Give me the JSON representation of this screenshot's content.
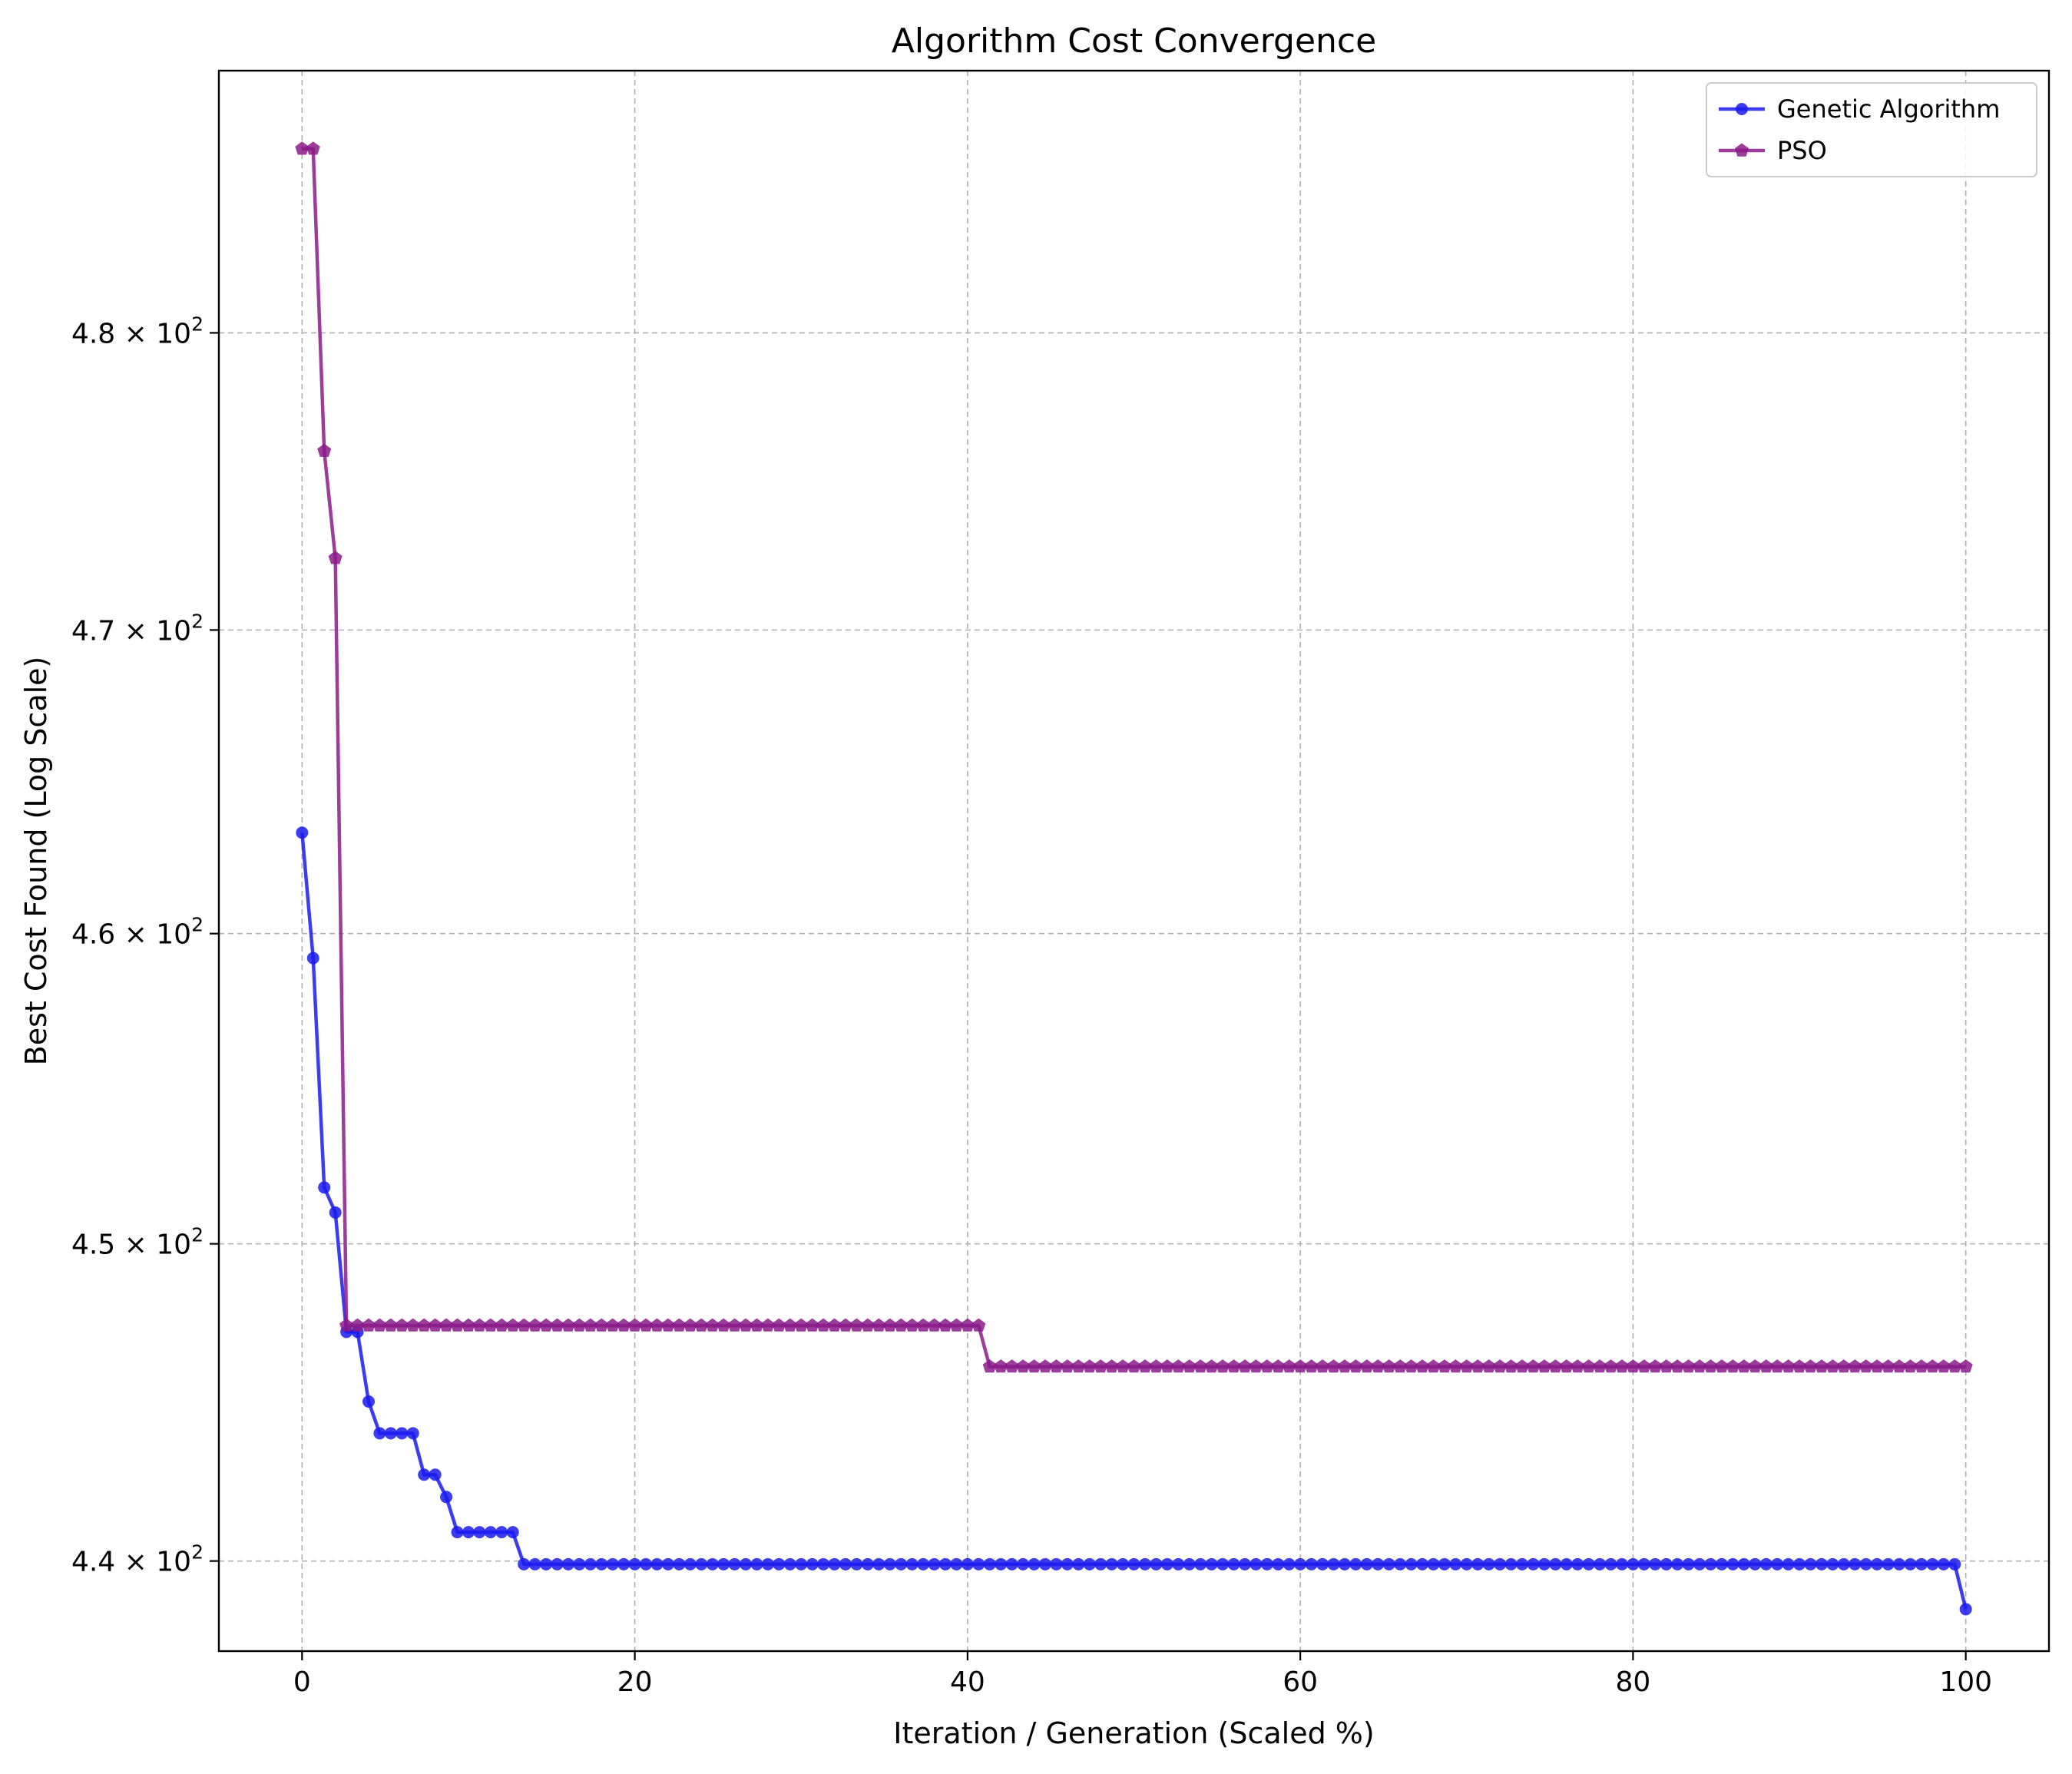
{
  "chart_data": {
    "type": "line",
    "title": "Algorithm Cost Convergence",
    "xlabel": "Iteration / Generation (Scaled %)",
    "ylabel": "Best Cost Found (Log Scale)",
    "xlim": [
      -5,
      105
    ],
    "ylim": [
      437.2,
      489.0
    ],
    "y_scale": "log",
    "grid": true,
    "legend_position": "top-right",
    "x_ticks": [
      {
        "value": 0,
        "label": "0"
      },
      {
        "value": 20,
        "label": "20"
      },
      {
        "value": 40,
        "label": "40"
      },
      {
        "value": 60,
        "label": "60"
      },
      {
        "value": 80,
        "label": "80"
      },
      {
        "value": 100,
        "label": "100"
      }
    ],
    "y_ticks": [
      {
        "value": 440,
        "mantissa": "4.4",
        "label": "4.4 × 10²"
      },
      {
        "value": 450,
        "mantissa": "4.5",
        "label": "4.5 × 10²"
      },
      {
        "value": 460,
        "mantissa": "4.6",
        "label": "4.6 × 10²"
      },
      {
        "value": 470,
        "mantissa": "4.7",
        "label": "4.7 × 10²"
      },
      {
        "value": 480,
        "mantissa": "4.8",
        "label": "4.8 × 10²"
      }
    ],
    "tick_exponent_base": "10",
    "tick_exponent_power": "2",
    "tick_times_symbol": "×",
    "series": [
      {
        "name": "Genetic Algorithm",
        "color": "#1a1aee",
        "marker": "circle",
        "x_range": [
          0,
          100
        ],
        "n_points": 151,
        "steps": [
          [
            0,
            463.3
          ],
          [
            1,
            459.2
          ],
          [
            2,
            451.8
          ],
          [
            3,
            451.0
          ],
          [
            4,
            447.2
          ],
          [
            5,
            447.2
          ],
          [
            6,
            445.0
          ],
          [
            7,
            444.0
          ],
          [
            11,
            442.7
          ],
          [
            13,
            442.0
          ],
          [
            14,
            440.9
          ],
          [
            20,
            439.9
          ],
          [
            150,
            438.5
          ]
        ]
      },
      {
        "name": "PSO",
        "color": "#8b1a89",
        "marker": "pentagon",
        "x_range": [
          0,
          100
        ],
        "n_points": 151,
        "steps": [
          [
            0,
            486.3
          ],
          [
            2,
            476.0
          ],
          [
            3,
            472.4
          ],
          [
            4,
            447.4
          ],
          [
            62,
            446.1
          ]
        ]
      }
    ]
  }
}
